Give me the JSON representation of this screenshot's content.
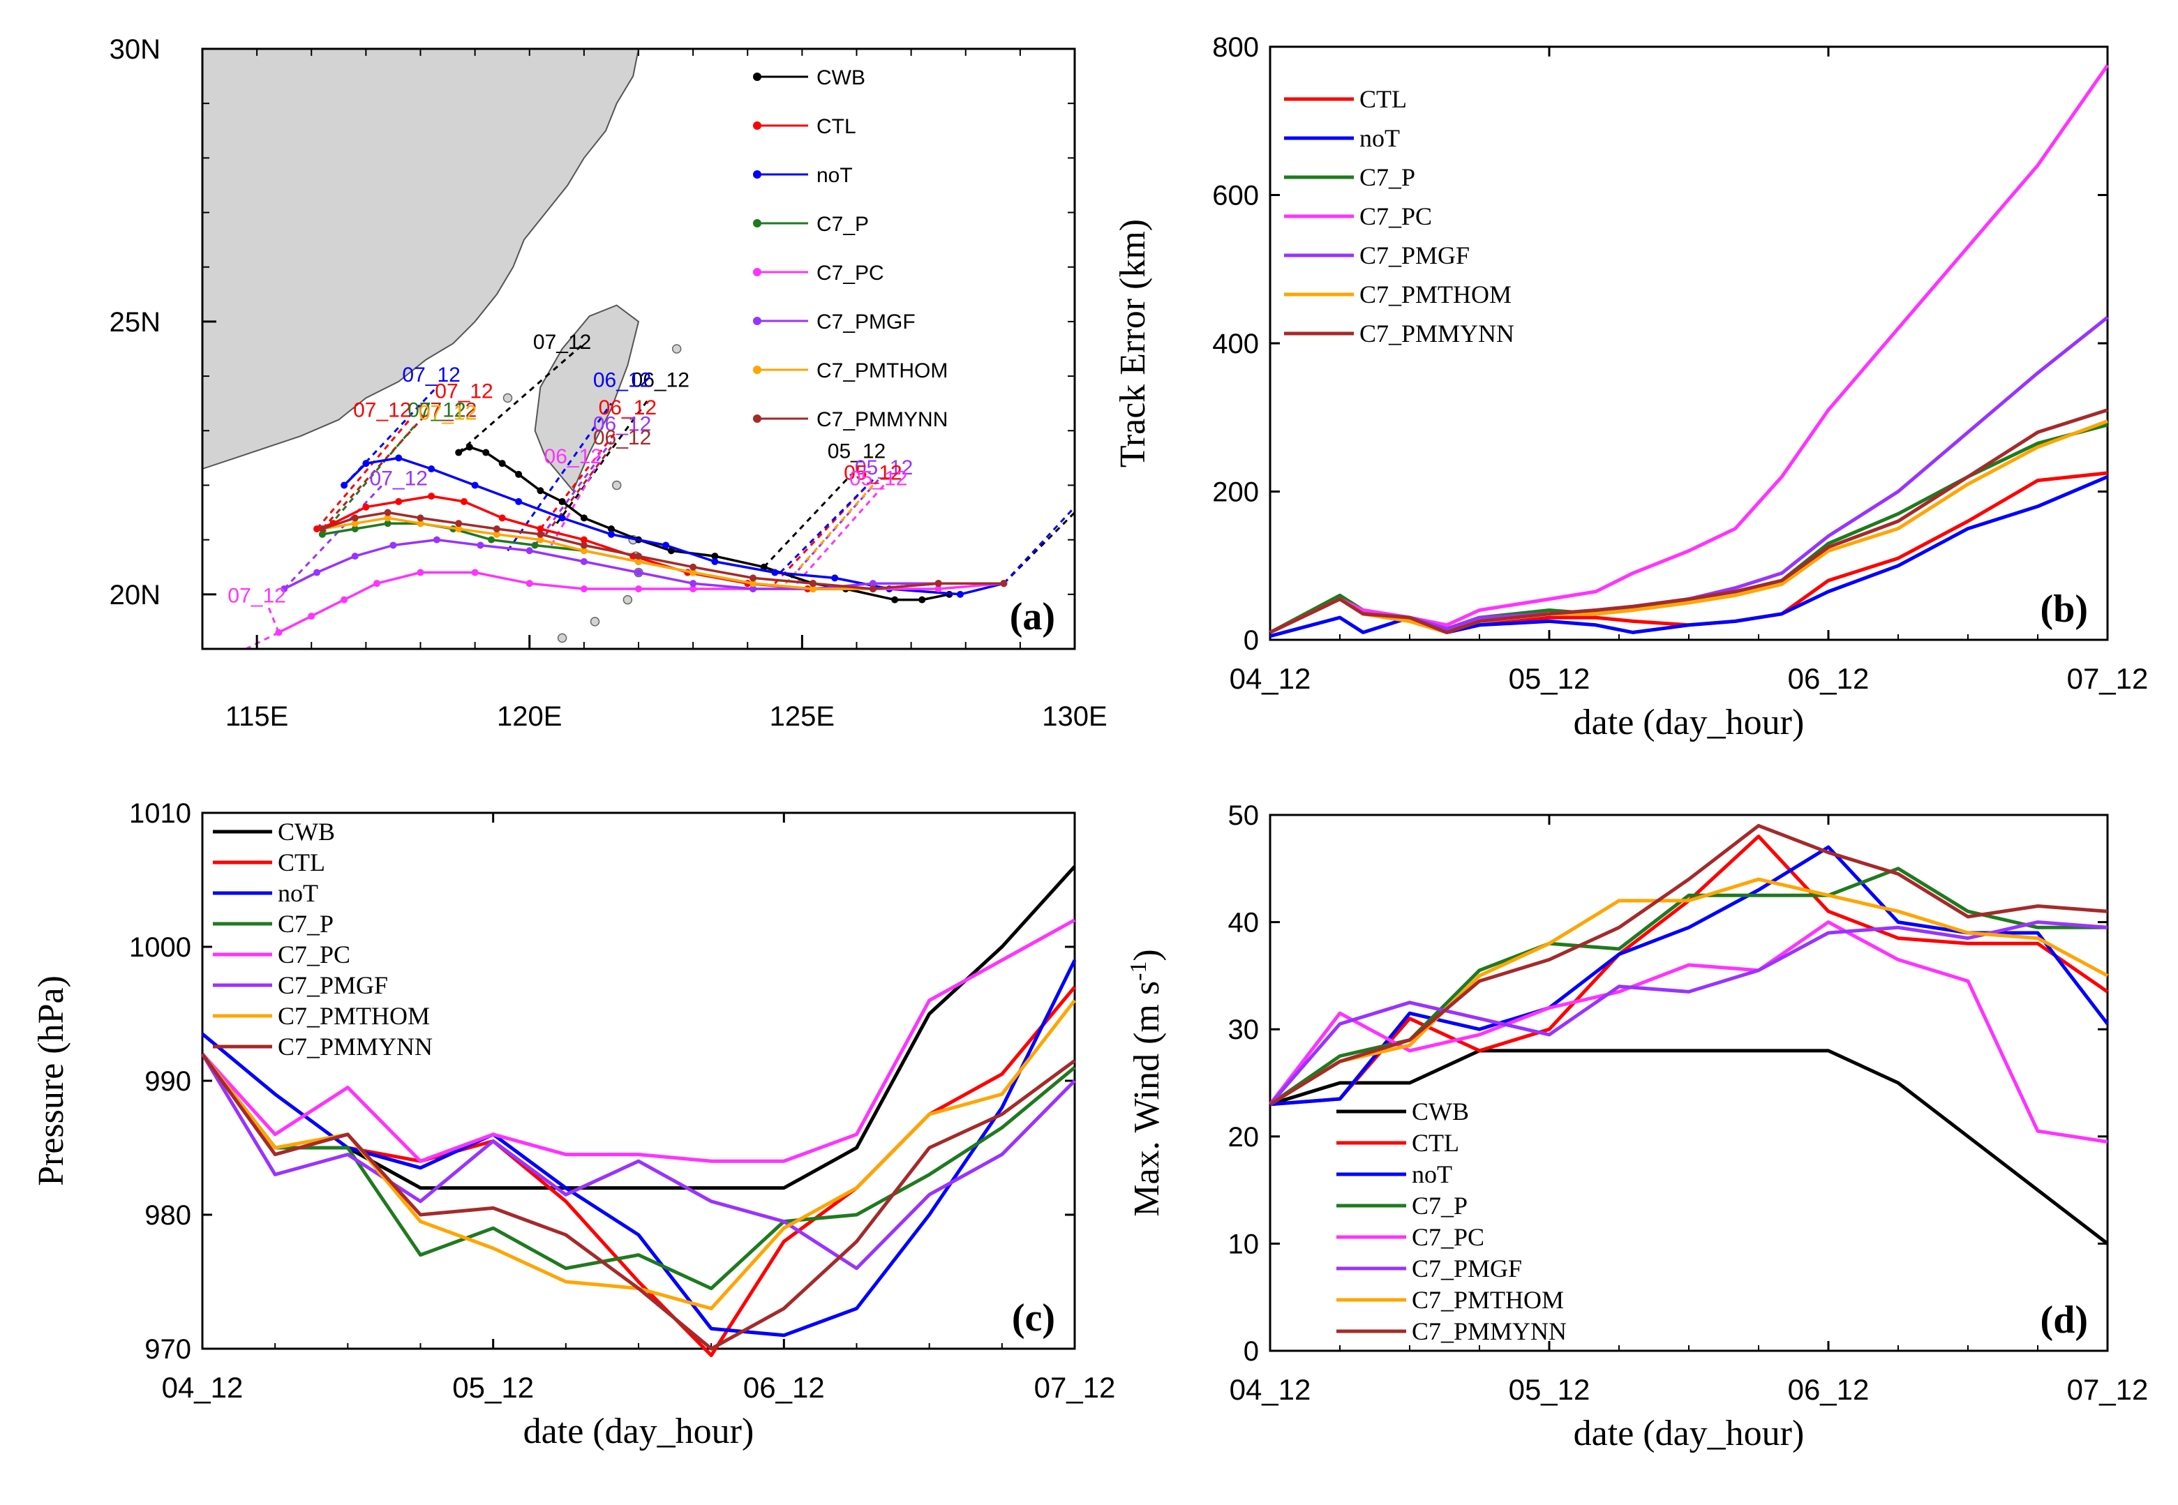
{
  "colors": {
    "CWB": "#000000",
    "CTL": "#ff0000",
    "noT": "#0000ff",
    "C7_P": "#1f7a1f",
    "C7_PC": "#ff33ff",
    "C7_PMGF": "#9933ff",
    "C7_PMTHOM": "#ffa500",
    "C7_PMMYNN": "#a52a2a",
    "land": "#d3d3d3"
  },
  "chart_data": [
    {
      "id": "a",
      "type": "scatter",
      "title": "(a)",
      "xlim": [
        114,
        130
      ],
      "ylim": [
        19,
        30
      ],
      "xticks": [
        {
          "v": 115,
          "label": "115E"
        },
        {
          "v": 120,
          "label": "120E"
        },
        {
          "v": 125,
          "label": "125E"
        },
        {
          "v": 130,
          "label": "130E"
        }
      ],
      "yticks": [
        {
          "v": 20,
          "label": "20N"
        },
        {
          "v": 25,
          "label": "25N"
        },
        {
          "v": 30,
          "label": "30N"
        }
      ],
      "legend": [
        "CWB",
        "CTL",
        "noT",
        "C7_P",
        "C7_PC",
        "C7_PMGF",
        "C7_PMTHOM",
        "C7_PMMYNN"
      ],
      "legend_position": "top-right",
      "series": [
        {
          "name": "CWB",
          "lon": [
            127.7,
            127.2,
            126.7,
            125.8,
            125.2,
            124.3,
            123.4,
            122.6,
            122,
            121.5,
            121,
            120.6,
            120.2,
            119.8,
            119.5,
            119.2,
            118.9,
            118.7
          ],
          "lat": [
            20,
            19.9,
            19.9,
            20.1,
            20.2,
            20.5,
            20.7,
            20.8,
            21,
            21.2,
            21.4,
            21.7,
            21.9,
            22.2,
            22.4,
            22.6,
            22.7,
            22.6
          ]
        },
        {
          "name": "CTL",
          "lon": [
            128.7,
            127.5,
            126.3,
            125.1,
            124,
            122.9,
            121.9,
            121,
            120.2,
            119.5,
            118.8,
            118.2,
            117.6,
            117,
            116.4,
            116.1
          ],
          "lat": [
            20.2,
            20.2,
            20.1,
            20.1,
            20.2,
            20.4,
            20.7,
            21,
            21.2,
            21.4,
            21.7,
            21.8,
            21.7,
            21.6,
            21.3,
            21.2
          ]
        },
        {
          "name": "noT",
          "lon": [
            128.7,
            127.9,
            126.6,
            125.6,
            124.5,
            123.4,
            122.5,
            121.5,
            120.6,
            119.8,
            119,
            118.2,
            117.6,
            117,
            116.6
          ],
          "lat": [
            20.2,
            20,
            20.1,
            20.3,
            20.4,
            20.6,
            20.9,
            21.1,
            21.4,
            21.7,
            22,
            22.3,
            22.5,
            22.4,
            22
          ]
        },
        {
          "name": "C7_P",
          "lon": [
            128.7,
            127.5,
            126.3,
            125.2,
            124.1,
            123,
            122,
            121,
            120.1,
            119.3,
            118.6,
            118,
            117.4,
            116.8,
            116.2
          ],
          "lat": [
            20.2,
            20.2,
            20.1,
            20.1,
            20.2,
            20.4,
            20.6,
            20.8,
            20.9,
            21,
            21.2,
            21.3,
            21.3,
            21.2,
            21.1
          ]
        },
        {
          "name": "C7_PC",
          "lon": [
            128.7,
            127.5,
            126.3,
            125.2,
            124.1,
            123,
            122,
            121,
            120,
            119,
            118,
            117.2,
            116.6,
            116,
            115.4
          ],
          "lat": [
            20.2,
            20.1,
            20.1,
            20.1,
            20.1,
            20.1,
            20.1,
            20.1,
            20.2,
            20.4,
            20.4,
            20.2,
            19.9,
            19.6,
            19.3
          ]
        },
        {
          "name": "C7_PMGF",
          "lon": [
            128.7,
            127.5,
            126.3,
            125.2,
            124.1,
            123,
            122,
            121,
            120,
            119.1,
            118.3,
            117.5,
            116.8,
            116.1,
            115.5
          ],
          "lat": [
            20.2,
            20.2,
            20.2,
            20.1,
            20.1,
            20.2,
            20.4,
            20.6,
            20.8,
            20.9,
            21,
            20.9,
            20.7,
            20.4,
            20.1
          ]
        },
        {
          "name": "C7_PMTHOM",
          "lon": [
            128.7,
            127.5,
            126.3,
            125.2,
            124.1,
            123,
            122,
            121,
            120.2,
            119.4,
            118.7,
            118,
            117.4,
            116.8,
            116.2
          ],
          "lat": [
            20.2,
            20.2,
            20.1,
            20.1,
            20.2,
            20.4,
            20.6,
            20.8,
            21,
            21.1,
            21.2,
            21.3,
            21.4,
            21.3,
            21.2
          ]
        },
        {
          "name": "C7_PMMYNN",
          "lon": [
            128.7,
            127.5,
            126.3,
            125.2,
            124.1,
            123,
            122,
            121,
            120.2,
            119.4,
            118.7,
            118,
            117.4,
            116.8,
            116.2
          ],
          "lat": [
            20.2,
            20.2,
            20.1,
            20.2,
            20.3,
            20.5,
            20.7,
            20.9,
            21.1,
            21.2,
            21.3,
            21.4,
            21.5,
            21.4,
            21.2
          ]
        }
      ],
      "annotations": [
        {
          "text": "07_12",
          "lon": 120.6,
          "lat": 24.5,
          "color": "#000000"
        },
        {
          "text": "07_12",
          "lon": 118.2,
          "lat": 23.9,
          "color": "#0000ff"
        },
        {
          "text": "07_12",
          "lon": 118.8,
          "lat": 23.6,
          "color": "#ff0000"
        },
        {
          "text": "07_12",
          "lon": 118.5,
          "lat": 23.25,
          "color": "#a52a2a"
        },
        {
          "text": "07_12",
          "lon": 117.3,
          "lat": 23.25,
          "color": "#ff0000"
        },
        {
          "text": "07_12",
          "lon": 118.3,
          "lat": 23.25,
          "color": "#1f7a1f"
        },
        {
          "text": "07_12",
          "lon": 118.5,
          "lat": 23.2,
          "color": "#ffa500"
        },
        {
          "text": "07_12",
          "lon": 117.6,
          "lat": 22.0,
          "color": "#9933ff"
        },
        {
          "text": "07_12",
          "lon": 115.0,
          "lat": 19.85,
          "color": "#ff33ff"
        },
        {
          "text": "06_12",
          "lon": 122.4,
          "lat": 23.8,
          "color": "#000000"
        },
        {
          "text": "06_12",
          "lon": 121.7,
          "lat": 23.8,
          "color": "#0000ff"
        },
        {
          "text": "06_12",
          "lon": 121.8,
          "lat": 23.3,
          "color": "#ff0000"
        },
        {
          "text": "06_12",
          "lon": 121.7,
          "lat": 23.0,
          "color": "#9933ff"
        },
        {
          "text": "06_12",
          "lon": 121.7,
          "lat": 22.75,
          "color": "#a52a2a"
        },
        {
          "text": "06_12",
          "lon": 120.8,
          "lat": 22.4,
          "color": "#ff33ff"
        },
        {
          "text": "05_12",
          "lon": 126.0,
          "lat": 22.5,
          "color": "#000000"
        },
        {
          "text": "05_12",
          "lon": 126.5,
          "lat": 22.2,
          "color": "#9933ff"
        },
        {
          "text": "05_12",
          "lon": 126.3,
          "lat": 22.1,
          "color": "#ff0000"
        },
        {
          "text": "05_12",
          "lon": 126.4,
          "lat": 22.0,
          "color": "#ff33ff"
        }
      ]
    },
    {
      "id": "b",
      "type": "line",
      "title": "(b)",
      "xlabel": "date (day_hour)",
      "ylabel": "Track Error (km)",
      "xlim": [
        0,
        18
      ],
      "ylim": [
        0,
        800
      ],
      "xticks": [
        {
          "v": 0,
          "label": "04_12"
        },
        {
          "v": 6,
          "label": "05_12"
        },
        {
          "v": 12,
          "label": "06_12"
        },
        {
          "v": 18,
          "label": "07_12"
        }
      ],
      "yticks": [
        0,
        200,
        400,
        600,
        800
      ],
      "legend": [
        "CTL",
        "noT",
        "C7_P",
        "C7_PC",
        "C7_PMGF",
        "C7_PMTHOM",
        "C7_PMMYNN"
      ],
      "legend_position": "top-left",
      "x": [
        0,
        1.5,
        2,
        3,
        3.8,
        4.5,
        6,
        7,
        7.8,
        9,
        10,
        11,
        12,
        13.5,
        15,
        16.5,
        18
      ],
      "series": [
        {
          "name": "CTL",
          "values": [
            10,
            55,
            35,
            25,
            10,
            20,
            30,
            30,
            25,
            20,
            25,
            35,
            80,
            110,
            160,
            215,
            225
          ]
        },
        {
          "name": "noT",
          "values": [
            5,
            30,
            10,
            30,
            10,
            20,
            25,
            20,
            10,
            20,
            25,
            35,
            65,
            100,
            150,
            180,
            220
          ]
        },
        {
          "name": "C7_P",
          "values": [
            10,
            60,
            40,
            30,
            15,
            30,
            40,
            35,
            40,
            55,
            65,
            80,
            130,
            170,
            220,
            265,
            290
          ]
        },
        {
          "name": "C7_PC",
          "values": [
            10,
            55,
            40,
            30,
            20,
            40,
            55,
            65,
            90,
            120,
            150,
            220,
            310,
            420,
            530,
            640,
            775
          ]
        },
        {
          "name": "C7_PMGF",
          "values": [
            10,
            55,
            35,
            30,
            15,
            30,
            35,
            40,
            45,
            55,
            70,
            90,
            140,
            200,
            280,
            360,
            435
          ]
        },
        {
          "name": "C7_PMTHOM",
          "values": [
            10,
            55,
            35,
            25,
            10,
            25,
            35,
            35,
            40,
            50,
            60,
            75,
            120,
            150,
            210,
            260,
            295
          ]
        },
        {
          "name": "C7_PMMYNN",
          "values": [
            10,
            55,
            35,
            30,
            10,
            25,
            35,
            40,
            45,
            55,
            65,
            80,
            125,
            160,
            220,
            280,
            310
          ]
        }
      ]
    },
    {
      "id": "c",
      "type": "line",
      "title": "(c)",
      "xlabel": "date (day_hour)",
      "ylabel": "Pressure (hPa)",
      "xlim": [
        0,
        18
      ],
      "ylim": [
        970,
        1010
      ],
      "xticks": [
        {
          "v": 0,
          "label": "04_12"
        },
        {
          "v": 6,
          "label": "05_12"
        },
        {
          "v": 12,
          "label": "06_12"
        },
        {
          "v": 18,
          "label": "07_12"
        }
      ],
      "yticks": [
        970,
        980,
        990,
        1000,
        1010
      ],
      "legend": [
        "CWB",
        "CTL",
        "noT",
        "C7_P",
        "C7_PC",
        "C7_PMGF",
        "C7_PMTHOM",
        "C7_PMMYNN"
      ],
      "legend_position": "top-left",
      "x": [
        0,
        1.5,
        3,
        4.5,
        6,
        7.5,
        9,
        10.5,
        12,
        13.5,
        15,
        16.5,
        18
      ],
      "series": [
        {
          "name": "CWB",
          "values": [
            992,
            985,
            985,
            982,
            982,
            982,
            982,
            982,
            982,
            985,
            995,
            1000,
            1006
          ]
        },
        {
          "name": "CTL",
          "values": [
            992,
            985,
            985,
            984,
            985.5,
            981,
            975,
            969.5,
            978,
            982,
            987.5,
            990.5,
            997
          ]
        },
        {
          "name": "noT",
          "values": [
            993.5,
            989,
            985,
            983.5,
            986,
            982,
            978.5,
            971.5,
            971,
            973,
            980,
            988,
            999
          ]
        },
        {
          "name": "C7_P",
          "values": [
            992,
            985,
            985,
            977,
            979,
            976,
            977,
            974.5,
            979.5,
            980,
            983,
            986.5,
            991
          ]
        },
        {
          "name": "C7_PC",
          "values": [
            992,
            986,
            989.5,
            984,
            986,
            984.5,
            984.5,
            984,
            984,
            986,
            996,
            999,
            1002
          ]
        },
        {
          "name": "C7_PMGF",
          "values": [
            992,
            983,
            984.5,
            981,
            985.5,
            981.5,
            984,
            981,
            979.5,
            976,
            981.5,
            984.5,
            990
          ]
        },
        {
          "name": "C7_PMTHOM",
          "values": [
            992,
            985,
            986,
            979.5,
            977.5,
            975,
            974.5,
            973,
            979,
            982,
            987.5,
            989,
            996
          ]
        },
        {
          "name": "C7_PMMYNN",
          "values": [
            992,
            984.5,
            986,
            980,
            980.5,
            978.5,
            974.5,
            970,
            973,
            978,
            985,
            987.5,
            991.5
          ]
        }
      ]
    },
    {
      "id": "d",
      "type": "line",
      "title": "(d)",
      "xlabel": "date (day_hour)",
      "ylabel_prefix": "Max. Wind (m s",
      "ylabel_sup": "-1",
      "ylabel_suffix": ")",
      "xlim": [
        0,
        18
      ],
      "ylim": [
        0,
        50
      ],
      "xticks": [
        {
          "v": 0,
          "label": "04_12"
        },
        {
          "v": 6,
          "label": "05_12"
        },
        {
          "v": 12,
          "label": "06_12"
        },
        {
          "v": 18,
          "label": "07_12"
        }
      ],
      "yticks": [
        0,
        10,
        20,
        30,
        40,
        50
      ],
      "legend": [
        "CWB",
        "CTL",
        "noT",
        "C7_P",
        "C7_PC",
        "C7_PMGF",
        "C7_PMTHOM",
        "C7_PMMYNN"
      ],
      "legend_position": "bottom-center",
      "x": [
        0,
        1.5,
        3,
        4.5,
        6,
        7.5,
        9,
        10.5,
        12,
        13.5,
        15,
        16.5,
        18
      ],
      "series": [
        {
          "name": "CWB",
          "values": [
            23,
            25,
            25,
            28,
            28,
            28,
            28,
            28,
            28,
            25,
            20,
            15,
            10
          ]
        },
        {
          "name": "CTL",
          "values": [
            23,
            23.5,
            31,
            28,
            30,
            37,
            42,
            48,
            41,
            38.5,
            38,
            38,
            33.5
          ]
        },
        {
          "name": "noT",
          "values": [
            23,
            23.5,
            31.5,
            30,
            32,
            37,
            39.5,
            43,
            47,
            40,
            39,
            39,
            30.5
          ]
        },
        {
          "name": "C7_P",
          "values": [
            23,
            27.5,
            29,
            35.5,
            38,
            37.5,
            42.5,
            42.5,
            42.5,
            45,
            41,
            39.5,
            39.5
          ]
        },
        {
          "name": "C7_PC",
          "values": [
            23,
            31.5,
            28,
            29.5,
            32,
            33.5,
            36,
            35.5,
            40,
            36.5,
            34.5,
            20.5,
            19.5
          ]
        },
        {
          "name": "C7_PMGF",
          "values": [
            23,
            30.5,
            32.5,
            31,
            29.5,
            34,
            33.5,
            35.5,
            39,
            39.5,
            38.5,
            40,
            39.5
          ]
        },
        {
          "name": "C7_PMTHOM",
          "values": [
            23,
            27,
            28.5,
            35,
            38,
            42,
            42,
            44,
            42.5,
            41,
            39,
            38.5,
            35
          ]
        },
        {
          "name": "C7_PMMYNN",
          "values": [
            23,
            27,
            29,
            34.5,
            36.5,
            39.5,
            44,
            49,
            46.5,
            44.5,
            40.5,
            41.5,
            41
          ]
        }
      ]
    }
  ]
}
